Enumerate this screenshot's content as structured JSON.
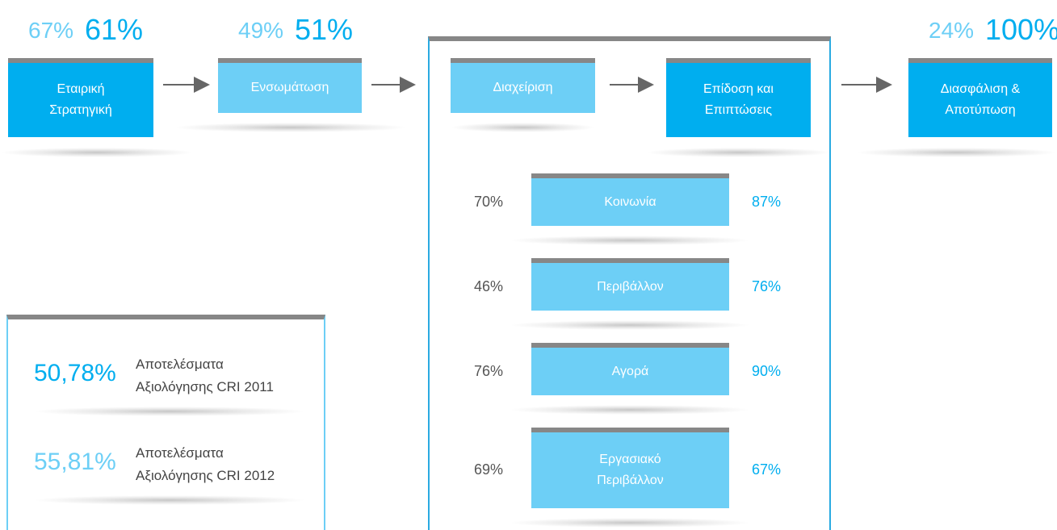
{
  "stages": [
    {
      "lines": [
        "Εταιρική",
        "Στρατηγική"
      ],
      "pct_a": "67%",
      "pct_b": "61%"
    },
    {
      "lines": [
        "Ενσωμάτωση"
      ],
      "pct_a": "49%",
      "pct_b": "51%"
    },
    {
      "lines": [
        "Διαχείριση"
      ]
    },
    {
      "lines": [
        "Επίδοση και",
        "Επιπτώσεις"
      ]
    },
    {
      "lines": [
        "Διασφάλιση &",
        "Αποτύπωση"
      ],
      "pct_a": "24%",
      "pct_b": "100%"
    }
  ],
  "areas": [
    {
      "lines": [
        "Κοινωνία"
      ],
      "left": "70%",
      "right": "87%"
    },
    {
      "lines": [
        "Περιβάλλον"
      ],
      "left": "46%",
      "right": "76%"
    },
    {
      "lines": [
        "Αγορά"
      ],
      "left": "76%",
      "right": "90%"
    },
    {
      "lines": [
        "Εργασιακό",
        "Περιβάλλον"
      ],
      "left": "69%",
      "right": "67%"
    }
  ],
  "legend": [
    {
      "value": "50,78%",
      "lines": [
        "Αποτελέσματα",
        "Αξιολόγησης CRI 2011"
      ]
    },
    {
      "value": "55,81%",
      "lines": [
        "Αποτελέσματα",
        "Αξιολόγησης CRI 2012"
      ]
    }
  ]
}
